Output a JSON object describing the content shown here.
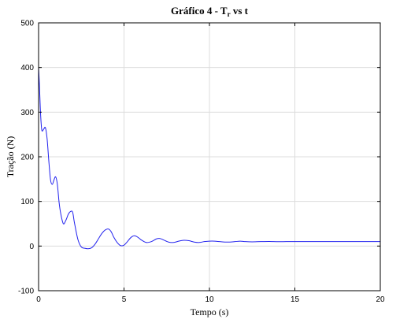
{
  "chart_data": {
    "type": "line",
    "title": "Gráfico 4 - T",
    "title_subscript": "r",
    "title_suffix": " vs t",
    "xlabel": "Tempo (s)",
    "ylabel": "Tração (N)",
    "xlim": [
      0,
      20
    ],
    "ylim": [
      -100,
      500
    ],
    "xticks": [
      0,
      5,
      10,
      15,
      20
    ],
    "yticks": [
      -100,
      0,
      100,
      200,
      300,
      400,
      500
    ],
    "grid": true,
    "series_color": "#2222ee",
    "series": [
      {
        "x": [
          0.0,
          0.05,
          0.1,
          0.15,
          0.2,
          0.3,
          0.4,
          0.5,
          0.6,
          0.7,
          0.8,
          0.9,
          1.0,
          1.1,
          1.2,
          1.3,
          1.45,
          1.6,
          1.75,
          1.9,
          2.0,
          2.1,
          2.3,
          2.5,
          2.7,
          2.9,
          3.1,
          3.3,
          3.5,
          3.7,
          3.9,
          4.1,
          4.25,
          4.4,
          4.6,
          4.8,
          5.0,
          5.2,
          5.4,
          5.6,
          5.8,
          6.0,
          6.3,
          6.6,
          6.9,
          7.1,
          7.3,
          7.6,
          7.9,
          8.2,
          8.5,
          8.8,
          9.1,
          9.4,
          9.7,
          10.0,
          10.3,
          10.6,
          10.9,
          11.2,
          11.5,
          11.8,
          12.1,
          12.5,
          13.0,
          13.5,
          14.0,
          14.5,
          15.0,
          16.0,
          17.0,
          18.0,
          19.0,
          20.0
        ],
        "y": [
          400,
          360,
          310,
          275,
          258,
          262,
          265,
          240,
          190,
          148,
          138,
          148,
          155,
          138,
          98,
          72,
          50,
          58,
          72,
          78,
          75,
          52,
          15,
          -2,
          -5,
          -6,
          -4,
          4,
          16,
          28,
          36,
          38,
          32,
          20,
          8,
          1,
          2,
          10,
          19,
          23,
          20,
          14,
          8,
          10,
          16,
          17,
          14,
          9,
          8,
          11,
          13,
          12,
          9,
          8,
          10,
          11,
          11,
          10,
          9,
          9,
          10,
          11,
          10,
          9.5,
          10,
          10.3,
          9.8,
          10,
          10,
          10,
          10,
          10,
          10,
          10
        ]
      }
    ]
  }
}
